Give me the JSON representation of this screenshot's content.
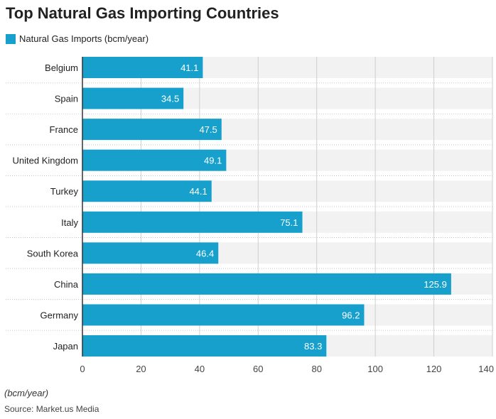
{
  "chart_data": {
    "type": "bar",
    "orientation": "horizontal",
    "title": "Top Natural Gas Importing Countries",
    "categories": [
      "Belgium",
      "Spain",
      "France",
      "United Kingdom",
      "Turkey",
      "Italy",
      "South Korea",
      "China",
      "Germany",
      "Japan"
    ],
    "series": [
      {
        "name": "Natural Gas Imports (bcm/year)",
        "values": [
          41.1,
          34.5,
          47.5,
          49.1,
          44.1,
          75.1,
          46.4,
          125.9,
          96.2,
          83.3
        ]
      }
    ],
    "xlim": [
      0,
      140
    ],
    "xticks": [
      0,
      20,
      40,
      60,
      80,
      100,
      120,
      140
    ],
    "unit_note": "(bcm/year)",
    "source": "Source: Market.us Media",
    "grid": true,
    "legend_position": "top-left",
    "bar_color": "#17a0cc",
    "band_color": "#f2f2f2"
  }
}
